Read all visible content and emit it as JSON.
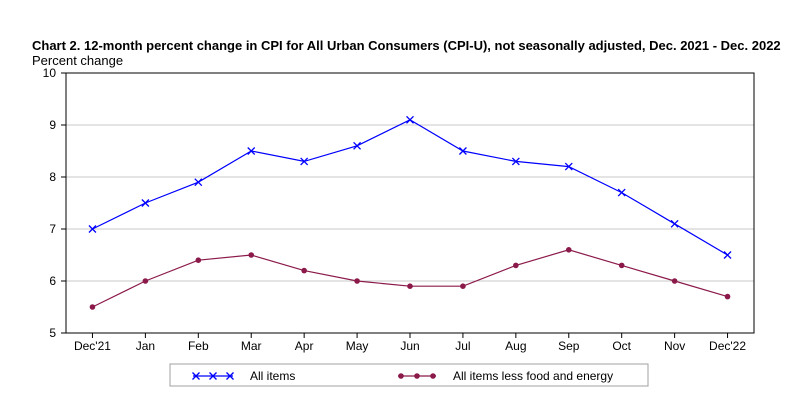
{
  "chart_data": {
    "type": "line",
    "title": "Chart 2. 12-month percent change in CPI for All Urban Consumers (CPI-U), not seasonally adjusted, Dec. 2021 - Dec. 2022",
    "ylabel": "Percent change",
    "xlabel": "",
    "categories": [
      "Dec'21",
      "Jan",
      "Feb",
      "Mar",
      "Apr",
      "May",
      "Jun",
      "Jul",
      "Aug",
      "Sep",
      "Oct",
      "Nov",
      "Dec'22"
    ],
    "ylim": [
      5,
      10
    ],
    "yticks": [
      5,
      6,
      7,
      8,
      9,
      10
    ],
    "grid": true,
    "legend_position": "bottom",
    "series": [
      {
        "name": "All items",
        "color": "#0000ff",
        "marker": "x",
        "values": [
          7.0,
          7.5,
          7.9,
          8.5,
          8.3,
          8.6,
          9.1,
          8.5,
          8.3,
          8.2,
          7.7,
          7.1,
          6.5
        ]
      },
      {
        "name": "All items less food and energy",
        "color": "#8b1a4a",
        "marker": "circle",
        "values": [
          5.5,
          6.0,
          6.4,
          6.5,
          6.2,
          6.0,
          5.9,
          5.9,
          6.3,
          6.6,
          6.3,
          6.0,
          5.7
        ]
      }
    ]
  }
}
